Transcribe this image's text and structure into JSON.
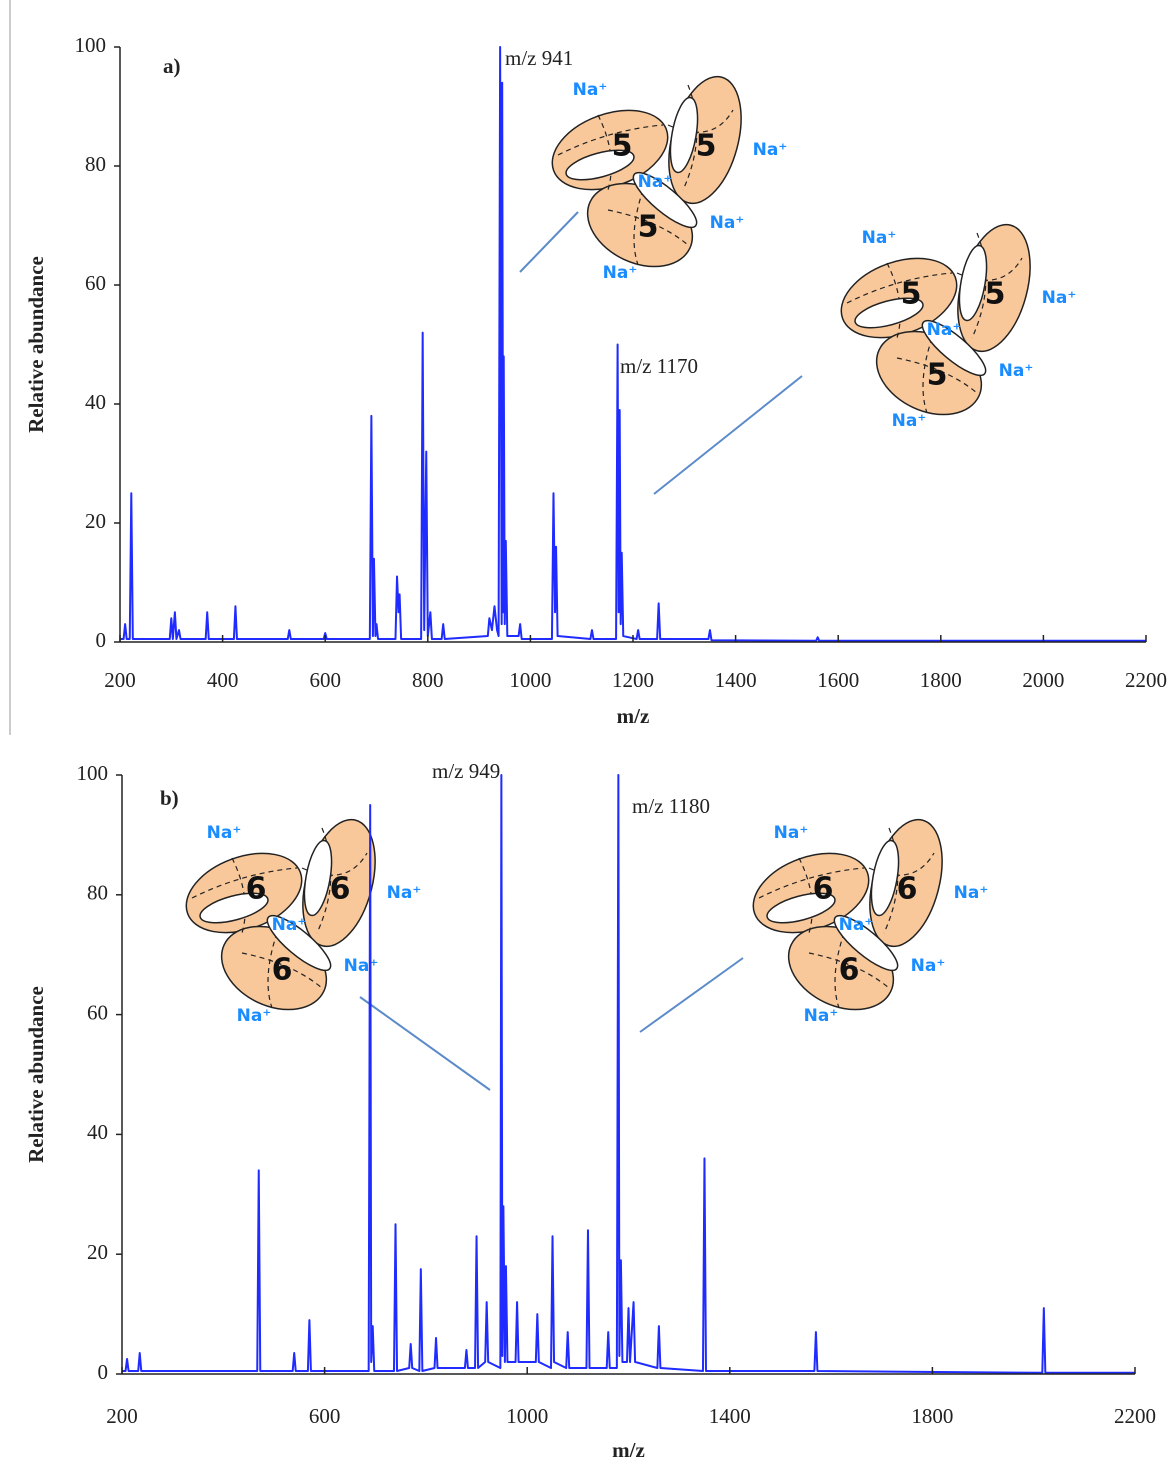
{
  "chart_data": [
    {
      "type": "line",
      "panel_label": "a)",
      "xlabel": "m/z",
      "ylabel": "Relative abundance",
      "color": "#1f2bff",
      "xlim": [
        200,
        2200
      ],
      "xticks": [
        200,
        400,
        600,
        800,
        1000,
        1200,
        1400,
        1600,
        1800,
        2000,
        2200
      ],
      "ylim": [
        0,
        100
      ],
      "yticks": [
        0,
        20,
        40,
        60,
        80,
        100
      ],
      "grid": false,
      "annotations": [
        "m/z 941",
        "m/z 1170"
      ],
      "diagrams": [
        {
          "ions": [
            "Na⁺",
            "Na⁺",
            "Na⁺",
            "Na⁺",
            "Na⁺"
          ],
          "rings": [
            "5",
            "5",
            "5"
          ]
        },
        {
          "ions": [
            "Na⁺",
            "Na⁺",
            "Na⁺",
            "Na⁺",
            "Na⁺"
          ],
          "rings": [
            "5",
            "5",
            "5"
          ]
        }
      ],
      "x": [
        200,
        207,
        210,
        213,
        219,
        222,
        225,
        297,
        300,
        303,
        307,
        310,
        315,
        318,
        367,
        370,
        373,
        422,
        425,
        428,
        527,
        530,
        533,
        597,
        600,
        603,
        687,
        690,
        693,
        695,
        698,
        700,
        703,
        737,
        740,
        743,
        745,
        748,
        787,
        790,
        793,
        797,
        800,
        805,
        808,
        827,
        830,
        833,
        917,
        920,
        925,
        930,
        935,
        938,
        941,
        944,
        945,
        947,
        948,
        950,
        952,
        955,
        977,
        980,
        983,
        1042,
        1045,
        1048,
        1050,
        1053,
        1117,
        1120,
        1123,
        1167,
        1170,
        1172,
        1174,
        1176,
        1178,
        1181,
        1207,
        1210,
        1213,
        1247,
        1250,
        1253,
        1347,
        1350,
        1353,
        1557,
        1560,
        1563,
        2200
      ],
      "values": [
        0.5,
        0.5,
        3,
        0.5,
        0.5,
        25,
        0.5,
        0.5,
        4,
        0.5,
        5,
        0.5,
        2,
        0.5,
        0.5,
        5,
        0.5,
        0.5,
        6,
        0.5,
        0.5,
        2,
        0.5,
        0.5,
        1.5,
        0.5,
        0.5,
        38,
        1,
        14,
        1,
        3,
        0.5,
        0.5,
        11,
        5,
        8,
        0.5,
        0.5,
        52,
        2,
        32,
        1,
        5,
        0.5,
        0.5,
        3,
        0.5,
        1,
        4,
        2,
        6,
        2,
        1,
        100,
        3,
        94,
        5,
        48,
        3,
        17,
        1,
        1,
        3,
        0.5,
        0.5,
        25,
        5,
        16,
        1,
        0.5,
        2,
        0.5,
        0.5,
        50,
        5,
        39,
        3,
        15,
        1,
        0.5,
        2,
        0.5,
        0.5,
        6.5,
        0.5,
        0.5,
        2,
        0.3,
        0.2,
        0.8,
        0.2,
        0.2
      ]
    },
    {
      "type": "line",
      "panel_label": "b)",
      "xlabel": "m/z",
      "ylabel": "Relative abundance",
      "color": "#1f2bff",
      "xlim": [
        200,
        2200
      ],
      "xticks": [
        200,
        600,
        1000,
        1400,
        1800,
        2200
      ],
      "ylim": [
        0,
        100
      ],
      "yticks": [
        0,
        20,
        40,
        60,
        80,
        100
      ],
      "grid": false,
      "annotations": [
        "m/z 949",
        "m/z 1180"
      ],
      "diagrams": [
        {
          "ions": [
            "Na⁺",
            "Na⁺",
            "Na⁺",
            "Na⁺",
            "Na⁺"
          ],
          "rings": [
            "6",
            "6",
            "6"
          ]
        },
        {
          "ions": [
            "Na⁺",
            "Na⁺",
            "Na⁺",
            "Na⁺",
            "Na⁺"
          ],
          "rings": [
            "6",
            "6",
            "6"
          ]
        }
      ],
      "x": [
        200,
        207,
        210,
        213,
        232,
        235,
        238,
        467,
        470,
        473,
        537,
        540,
        543,
        567,
        570,
        573,
        687,
        690,
        692,
        695,
        698,
        737,
        740,
        743,
        767,
        770,
        773,
        787,
        790,
        793,
        817,
        820,
        823,
        877,
        880,
        883,
        897,
        900,
        903,
        917,
        920,
        923,
        947,
        949,
        951,
        953,
        956,
        958,
        961,
        977,
        980,
        983,
        1017,
        1020,
        1023,
        1047,
        1050,
        1053,
        1077,
        1080,
        1083,
        1117,
        1120,
        1123,
        1157,
        1160,
        1163,
        1177,
        1180,
        1182,
        1185,
        1188,
        1197,
        1200,
        1203,
        1210,
        1213,
        1257,
        1260,
        1263,
        1347,
        1350,
        1353,
        1567,
        1570,
        1573,
        2017,
        2020,
        2023,
        2200
      ],
      "values": [
        0.5,
        0.5,
        2.5,
        0.5,
        0.5,
        3.5,
        0.5,
        0.5,
        34,
        0.5,
        0.5,
        3.5,
        0.5,
        0.5,
        9,
        0.5,
        0.5,
        95,
        2,
        8,
        0.5,
        0.5,
        25,
        0.5,
        1,
        5,
        1,
        0.5,
        17.5,
        0.5,
        1,
        6,
        1,
        1,
        4,
        1,
        1,
        23,
        1,
        2,
        12,
        2,
        1,
        100,
        3,
        28,
        2,
        18,
        2,
        2,
        12,
        2,
        2,
        10,
        2,
        1,
        23,
        2,
        1,
        7,
        1,
        1,
        24,
        1,
        1,
        7,
        1,
        1,
        100,
        3,
        19,
        2,
        2,
        11,
        2,
        12,
        2,
        1,
        8,
        1,
        0.5,
        36,
        0.5,
        0.5,
        7,
        0.5,
        0.2,
        11,
        0.2,
        0.2
      ]
    }
  ]
}
